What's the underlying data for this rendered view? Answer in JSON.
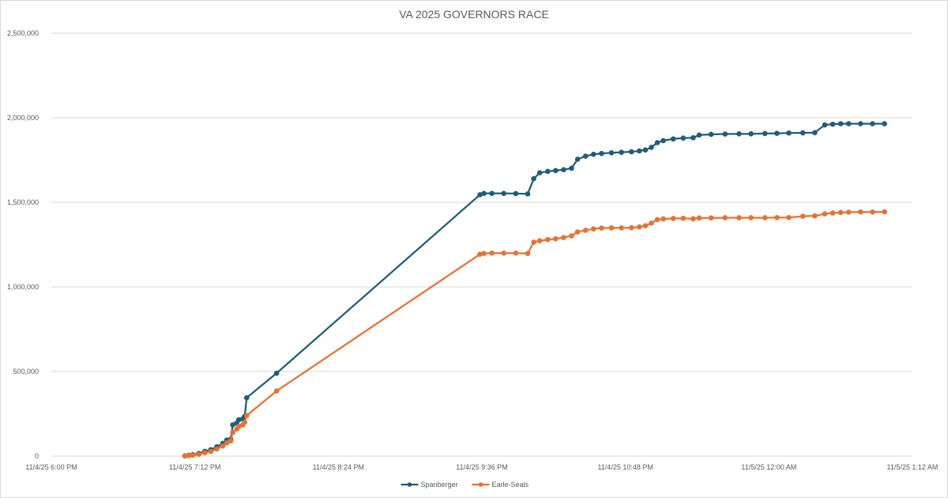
{
  "chart_data": {
    "type": "line",
    "title": "VA 2025 GOVERNORS RACE",
    "xlabel": "",
    "ylabel": "",
    "x_axis_type": "datetime",
    "xlim": [
      "2025-11-04T18:00",
      "2025-11-05T01:12"
    ],
    "ylim": [
      0,
      2500000
    ],
    "x_ticks": [
      {
        "t": "2025-11-04T18:00",
        "label": "11/4/25 6:00 PM"
      },
      {
        "t": "2025-11-04T19:12",
        "label": "11/4/25 7:12 PM"
      },
      {
        "t": "2025-11-04T20:24",
        "label": "11/4/25 8:24 PM"
      },
      {
        "t": "2025-11-04T21:36",
        "label": "11/4/25 9:36 PM"
      },
      {
        "t": "2025-11-04T22:48",
        "label": "11/4/25 10:48 PM"
      },
      {
        "t": "2025-11-05T00:00",
        "label": "11/5/25 12:00 AM"
      },
      {
        "t": "2025-11-05T01:12",
        "label": "11/5/25 1:12 AM"
      }
    ],
    "y_ticks": [
      {
        "v": 0,
        "label": "0"
      },
      {
        "v": 500000,
        "label": "500,000"
      },
      {
        "v": 1000000,
        "label": "1,000,000"
      },
      {
        "v": 1500000,
        "label": "1,500,000"
      },
      {
        "v": 2000000,
        "label": "2,000,000"
      },
      {
        "v": 2500000,
        "label": "2,500,000"
      }
    ],
    "grid": true,
    "legend_position": "bottom",
    "series": [
      {
        "name": "Spanberger",
        "color": "#1f5d7a",
        "points": [
          [
            "2025-11-04T19:07",
            2000
          ],
          [
            "2025-11-04T19:09",
            5000
          ],
          [
            "2025-11-04T19:11",
            9000
          ],
          [
            "2025-11-04T19:14",
            16000
          ],
          [
            "2025-11-04T19:17",
            28000
          ],
          [
            "2025-11-04T19:20",
            38000
          ],
          [
            "2025-11-04T19:23",
            55000
          ],
          [
            "2025-11-04T19:26",
            75000
          ],
          [
            "2025-11-04T19:28",
            95000
          ],
          [
            "2025-11-04T19:30",
            100000
          ],
          [
            "2025-11-04T19:31",
            185000
          ],
          [
            "2025-11-04T19:33",
            195000
          ],
          [
            "2025-11-04T19:34",
            215000
          ],
          [
            "2025-11-04T19:36",
            220000
          ],
          [
            "2025-11-04T19:37",
            235000
          ],
          [
            "2025-11-04T19:38",
            345000
          ],
          [
            "2025-11-04T19:53",
            490000
          ],
          [
            "2025-11-04T21:35",
            1545000
          ],
          [
            "2025-11-04T21:37",
            1553000
          ],
          [
            "2025-11-04T21:41",
            1553000
          ],
          [
            "2025-11-04T21:47",
            1553000
          ],
          [
            "2025-11-04T21:53",
            1552000
          ],
          [
            "2025-11-04T21:59",
            1550000
          ],
          [
            "2025-11-04T22:02",
            1640000
          ],
          [
            "2025-11-04T22:05",
            1675000
          ],
          [
            "2025-11-04T22:09",
            1683000
          ],
          [
            "2025-11-04T22:13",
            1688000
          ],
          [
            "2025-11-04T22:17",
            1693000
          ],
          [
            "2025-11-04T22:21",
            1702000
          ],
          [
            "2025-11-04T22:24",
            1755000
          ],
          [
            "2025-11-04T22:28",
            1773000
          ],
          [
            "2025-11-04T22:32",
            1784000
          ],
          [
            "2025-11-04T22:36",
            1789000
          ],
          [
            "2025-11-04T22:41",
            1793000
          ],
          [
            "2025-11-04T22:46",
            1796000
          ],
          [
            "2025-11-04T22:51",
            1799000
          ],
          [
            "2025-11-04T22:55",
            1804000
          ],
          [
            "2025-11-04T22:58",
            1810000
          ],
          [
            "2025-11-04T23:01",
            1825000
          ],
          [
            "2025-11-04T23:04",
            1853000
          ],
          [
            "2025-11-04T23:07",
            1865000
          ],
          [
            "2025-11-04T23:12",
            1875000
          ],
          [
            "2025-11-04T23:17",
            1880000
          ],
          [
            "2025-11-04T23:22",
            1882000
          ],
          [
            "2025-11-04T23:25",
            1898000
          ],
          [
            "2025-11-04T23:31",
            1902000
          ],
          [
            "2025-11-04T23:38",
            1904000
          ],
          [
            "2025-11-04T23:45",
            1905000
          ],
          [
            "2025-11-04T23:51",
            1905000
          ],
          [
            "2025-11-04T23:58",
            1907000
          ],
          [
            "2025-11-05T00:04",
            1908000
          ],
          [
            "2025-11-05T00:10",
            1910000
          ],
          [
            "2025-11-05T00:17",
            1911000
          ],
          [
            "2025-11-05T00:23",
            1912000
          ],
          [
            "2025-11-05T00:28",
            1958000
          ],
          [
            "2025-11-05T00:32",
            1962000
          ],
          [
            "2025-11-05T00:36",
            1965000
          ],
          [
            "2025-11-05T00:40",
            1965000
          ],
          [
            "2025-11-05T00:46",
            1965000
          ],
          [
            "2025-11-05T00:52",
            1965000
          ],
          [
            "2025-11-05T00:58",
            1965000
          ]
        ]
      },
      {
        "name": "Earle-Seals",
        "color": "#e97132",
        "points": [
          [
            "2025-11-04T19:07",
            1000
          ],
          [
            "2025-11-04T19:09",
            3000
          ],
          [
            "2025-11-04T19:11",
            6000
          ],
          [
            "2025-11-04T19:14",
            11000
          ],
          [
            "2025-11-04T19:17",
            20000
          ],
          [
            "2025-11-04T19:20",
            28000
          ],
          [
            "2025-11-04T19:23",
            42000
          ],
          [
            "2025-11-04T19:26",
            60000
          ],
          [
            "2025-11-04T19:28",
            78000
          ],
          [
            "2025-11-04T19:30",
            90000
          ],
          [
            "2025-11-04T19:31",
            140000
          ],
          [
            "2025-11-04T19:33",
            160000
          ],
          [
            "2025-11-04T19:34",
            175000
          ],
          [
            "2025-11-04T19:36",
            185000
          ],
          [
            "2025-11-04T19:37",
            200000
          ],
          [
            "2025-11-04T19:38",
            240000
          ],
          [
            "2025-11-04T19:53",
            385000
          ],
          [
            "2025-11-04T21:35",
            1193000
          ],
          [
            "2025-11-04T21:37",
            1198000
          ],
          [
            "2025-11-04T21:41",
            1200000
          ],
          [
            "2025-11-04T21:47",
            1200000
          ],
          [
            "2025-11-04T21:53",
            1200000
          ],
          [
            "2025-11-04T21:59",
            1198000
          ],
          [
            "2025-11-04T22:02",
            1265000
          ],
          [
            "2025-11-04T22:05",
            1273000
          ],
          [
            "2025-11-04T22:09",
            1280000
          ],
          [
            "2025-11-04T22:13",
            1285000
          ],
          [
            "2025-11-04T22:17",
            1292000
          ],
          [
            "2025-11-04T22:21",
            1302000
          ],
          [
            "2025-11-04T22:24",
            1325000
          ],
          [
            "2025-11-04T22:28",
            1335000
          ],
          [
            "2025-11-04T22:32",
            1343000
          ],
          [
            "2025-11-04T22:36",
            1348000
          ],
          [
            "2025-11-04T22:41",
            1349000
          ],
          [
            "2025-11-04T22:46",
            1349000
          ],
          [
            "2025-11-04T22:51",
            1350000
          ],
          [
            "2025-11-04T22:55",
            1355000
          ],
          [
            "2025-11-04T22:58",
            1362000
          ],
          [
            "2025-11-04T23:01",
            1377000
          ],
          [
            "2025-11-04T23:04",
            1398000
          ],
          [
            "2025-11-04T23:07",
            1402000
          ],
          [
            "2025-11-04T23:12",
            1405000
          ],
          [
            "2025-11-04T23:17",
            1406000
          ],
          [
            "2025-11-04T23:22",
            1403000
          ],
          [
            "2025-11-04T23:25",
            1408000
          ],
          [
            "2025-11-04T23:31",
            1408000
          ],
          [
            "2025-11-04T23:38",
            1409000
          ],
          [
            "2025-11-04T23:45",
            1409000
          ],
          [
            "2025-11-04T23:51",
            1409000
          ],
          [
            "2025-11-04T23:58",
            1409000
          ],
          [
            "2025-11-05T00:04",
            1410000
          ],
          [
            "2025-11-05T00:10",
            1410000
          ],
          [
            "2025-11-05T00:17",
            1418000
          ],
          [
            "2025-11-05T00:23",
            1420000
          ],
          [
            "2025-11-05T00:28",
            1432000
          ],
          [
            "2025-11-05T00:32",
            1437000
          ],
          [
            "2025-11-05T00:36",
            1440000
          ],
          [
            "2025-11-05T00:40",
            1442000
          ],
          [
            "2025-11-05T00:46",
            1443000
          ],
          [
            "2025-11-05T00:52",
            1443000
          ],
          [
            "2025-11-05T00:58",
            1444000
          ]
        ]
      }
    ]
  }
}
